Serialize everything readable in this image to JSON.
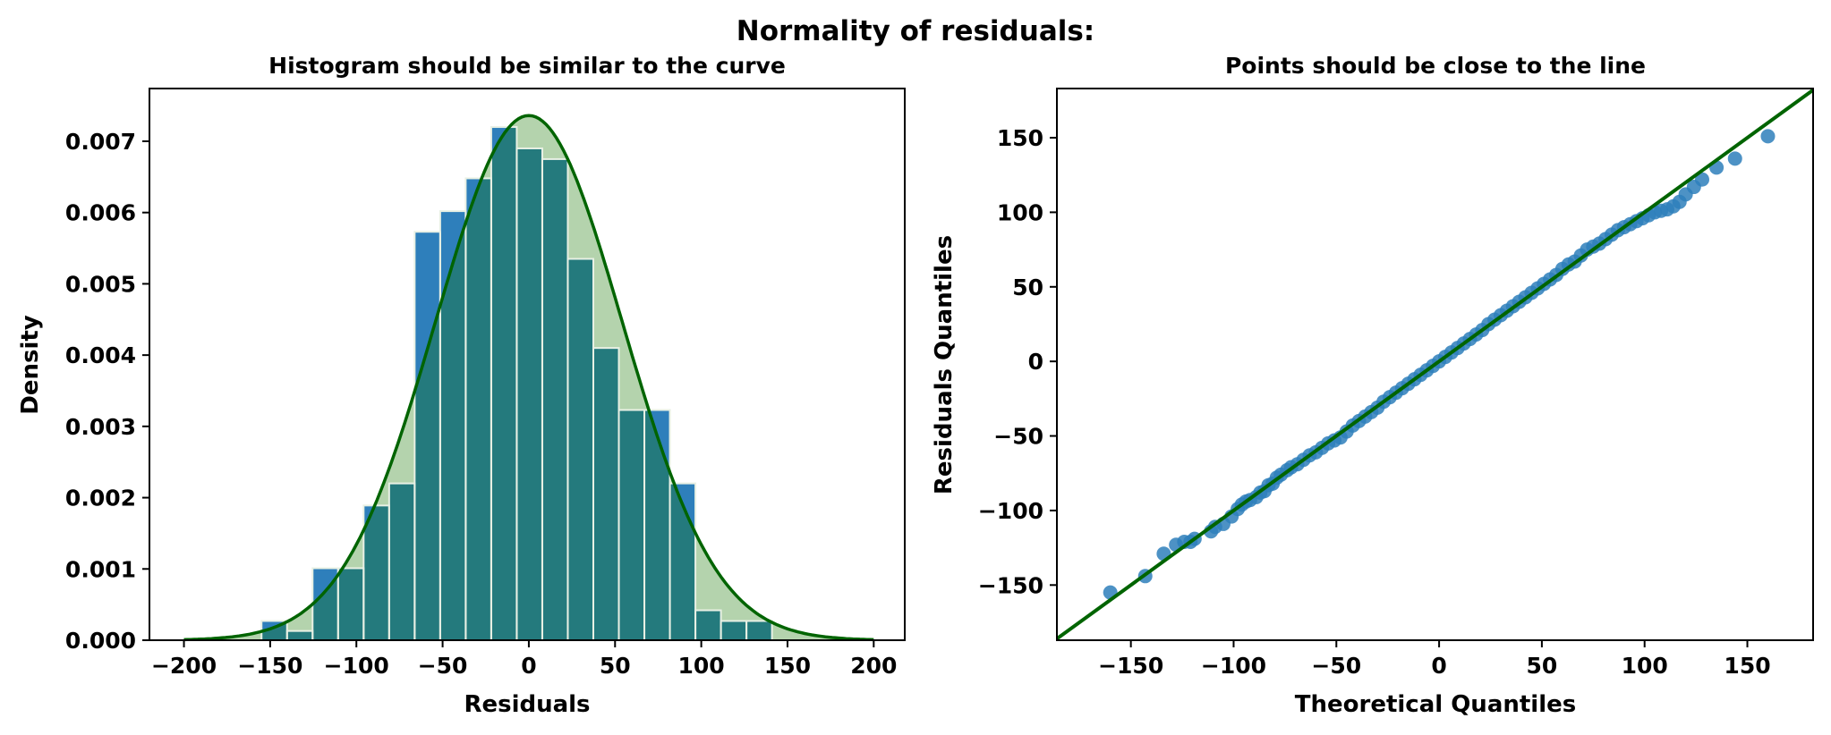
{
  "figure": {
    "suptitle": "Normality of residuals:"
  },
  "colors": {
    "bar": "#2e7fbb",
    "curve": "#006400",
    "curve_fill": "#b4d3ad",
    "overlap": "#247a7d",
    "qq_point": "#2e7fbb",
    "qq_line": "#006400"
  },
  "chart_data": [
    {
      "type": "bar",
      "title": "Histogram should be similar to the curve",
      "xlabel": "Residuals",
      "ylabel": "Density",
      "xlim": [
        -220,
        218
      ],
      "ylim": [
        0,
        0.00774
      ],
      "xticks": [
        -200,
        -150,
        -100,
        -50,
        0,
        50,
        100,
        150,
        200
      ],
      "xtick_labels": [
        "−200",
        "−150",
        "−100",
        "−50",
        "0",
        "50",
        "100",
        "150",
        "200"
      ],
      "yticks": [
        0,
        0.001,
        0.002,
        0.003,
        0.004,
        0.005,
        0.006,
        0.007
      ],
      "ytick_labels": [
        "0.000",
        "0.001",
        "0.002",
        "0.003",
        "0.004",
        "0.005",
        "0.006",
        "0.007"
      ],
      "bin_width": 14.8,
      "bin_starts": [
        -155,
        -140.2,
        -125.4,
        -110.6,
        -95.8,
        -81,
        -66.2,
        -51.4,
        -36.6,
        -21.8,
        -7,
        7.8,
        22.6,
        37.4,
        52.2,
        67,
        81.8,
        96.6,
        111.4,
        126.2,
        141
      ],
      "values": [
        0.00027,
        0.00013,
        0.00101,
        0.00101,
        0.00189,
        0.0022,
        0.00573,
        0.00602,
        0.00648,
        0.0072,
        0.0069,
        0.00675,
        0.00535,
        0.0041,
        0.00323,
        0.00323,
        0.0022,
        0.00042,
        0.00027,
        0.00027,
        0.0
      ],
      "normal_curve": {
        "mean": 0,
        "std": 54.2,
        "x_range": [
          -200,
          200
        ]
      },
      "grid": false
    },
    {
      "type": "scatter",
      "title": "Points should be close to the line",
      "xlabel": "Theoretical Quantiles",
      "ylabel": "Residuals Quantiles",
      "xlim": [
        -186,
        182
      ],
      "ylim": [
        -187,
        183
      ],
      "xticks": [
        -150,
        -100,
        -50,
        0,
        50,
        100,
        150
      ],
      "xtick_labels": [
        "−150",
        "−100",
        "−50",
        "0",
        "50",
        "100",
        "150"
      ],
      "yticks": [
        -150,
        -100,
        -50,
        0,
        50,
        100,
        150
      ],
      "ytick_labels": [
        "−150",
        "−100",
        "−50",
        "0",
        "50",
        "100",
        "150"
      ],
      "reference_line": {
        "slope": 1,
        "intercept": 0
      },
      "points": [
        [
          -160,
          -155
        ],
        [
          -143,
          -144
        ],
        [
          -134,
          -129
        ],
        [
          -128,
          -123
        ],
        [
          -124,
          -121
        ],
        [
          -121,
          -121
        ],
        [
          -119,
          -119
        ],
        [
          -111,
          -114
        ],
        [
          -109,
          -111
        ],
        [
          -105,
          -109
        ],
        [
          -101,
          -104
        ],
        [
          -98,
          -99
        ],
        [
          -96,
          -96
        ],
        [
          -94,
          -94
        ],
        [
          -92,
          -93
        ],
        [
          -89,
          -91
        ],
        [
          -87,
          -88
        ],
        [
          -85,
          -87
        ],
        [
          -83,
          -83
        ],
        [
          -81,
          -82
        ],
        [
          -79,
          -78
        ],
        [
          -77,
          -76
        ],
        [
          -74,
          -73
        ],
        [
          -72,
          -71
        ],
        [
          -69,
          -69
        ],
        [
          -66,
          -66
        ],
        [
          -63,
          -63
        ],
        [
          -60,
          -61
        ],
        [
          -57,
          -58
        ],
        [
          -54,
          -55
        ],
        [
          -51,
          -53
        ],
        [
          -48,
          -51
        ],
        [
          -45,
          -47
        ],
        [
          -42,
          -43
        ],
        [
          -39,
          -40
        ],
        [
          -36,
          -37
        ],
        [
          -33,
          -34
        ],
        [
          -30,
          -31
        ],
        [
          -27,
          -27
        ],
        [
          -24,
          -24
        ],
        [
          -21,
          -21
        ],
        [
          -18,
          -18
        ],
        [
          -15,
          -15
        ],
        [
          -12,
          -12
        ],
        [
          -9,
          -9
        ],
        [
          -6,
          -6
        ],
        [
          -3,
          -3
        ],
        [
          0,
          0
        ],
        [
          3,
          3
        ],
        [
          6,
          6
        ],
        [
          9,
          9
        ],
        [
          12,
          12
        ],
        [
          15,
          15
        ],
        [
          18,
          18
        ],
        [
          21,
          21
        ],
        [
          24,
          25
        ],
        [
          27,
          28
        ],
        [
          30,
          31
        ],
        [
          33,
          34
        ],
        [
          36,
          37
        ],
        [
          39,
          40
        ],
        [
          42,
          43
        ],
        [
          45,
          46
        ],
        [
          48,
          49
        ],
        [
          51,
          52
        ],
        [
          54,
          55
        ],
        [
          57,
          58
        ],
        [
          60,
          62
        ],
        [
          63,
          65
        ],
        [
          66,
          67
        ],
        [
          69,
          71
        ],
        [
          72,
          75
        ],
        [
          75,
          77
        ],
        [
          78,
          79
        ],
        [
          81,
          82
        ],
        [
          84,
          85
        ],
        [
          87,
          88
        ],
        [
          90,
          90
        ],
        [
          93,
          92
        ],
        [
          96,
          94
        ],
        [
          99,
          96
        ],
        [
          102,
          98
        ],
        [
          105,
          100
        ],
        [
          108,
          101
        ],
        [
          111,
          102
        ],
        [
          114,
          104
        ],
        [
          117,
          107
        ],
        [
          120,
          112
        ],
        [
          124,
          117
        ],
        [
          128,
          122
        ],
        [
          135,
          130
        ],
        [
          144,
          136
        ],
        [
          160,
          151
        ]
      ],
      "grid": false
    }
  ]
}
